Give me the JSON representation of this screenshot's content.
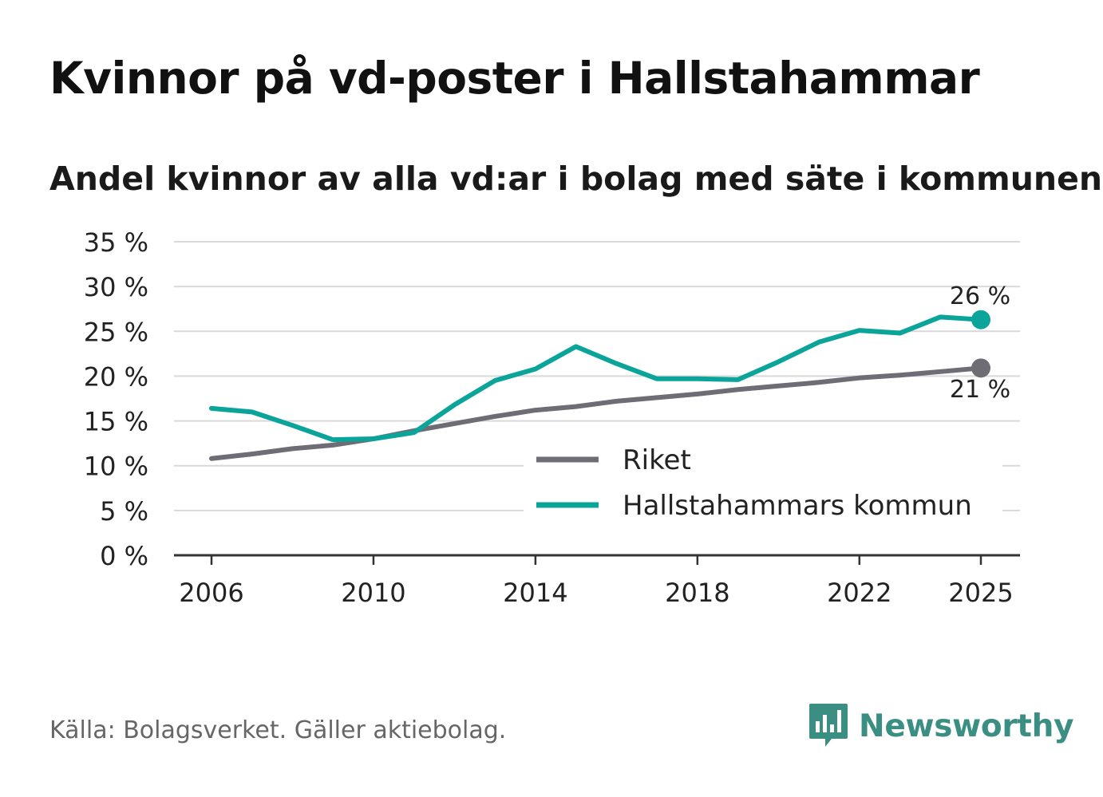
{
  "title": "Kvinnor på vd-poster i Hallstahammar",
  "subtitle": "Andel kvinnor av alla vd:ar i bolag med säte i kommunen",
  "source": "Källa: Bolagsverket. Gäller aktiebolag.",
  "brand": "Newsworthy",
  "colors": {
    "riket": "#6e6d75",
    "kommun": "#0aa49a",
    "grid": "#d9d9d9",
    "axis": "#333333",
    "brand": "#3b8f82"
  },
  "chart_data": {
    "type": "line",
    "x": [
      2006,
      2007,
      2008,
      2009,
      2010,
      2011,
      2012,
      2013,
      2014,
      2015,
      2016,
      2017,
      2018,
      2019,
      2020,
      2021,
      2022,
      2023,
      2024,
      2025
    ],
    "series": [
      {
        "name": "Riket",
        "color": "#6e6d75",
        "values": [
          10.8,
          11.3,
          11.9,
          12.3,
          13.0,
          13.9,
          14.7,
          15.5,
          16.2,
          16.6,
          17.2,
          17.6,
          18.0,
          18.5,
          18.9,
          19.3,
          19.8,
          20.1,
          20.5,
          20.9
        ],
        "end_label": "21 %"
      },
      {
        "name": "Hallstahammars kommun",
        "color": "#0aa49a",
        "values": [
          16.4,
          16.0,
          14.5,
          12.9,
          13.0,
          13.7,
          16.8,
          19.5,
          20.8,
          23.3,
          21.4,
          19.7,
          19.7,
          19.6,
          21.6,
          23.8,
          25.1,
          24.8,
          26.6,
          26.3
        ],
        "end_label": "26 %"
      }
    ],
    "xticks": [
      "2006",
      "2010",
      "2014",
      "2018",
      "2022",
      "2025"
    ],
    "yticks": [
      "0 %",
      "5 %",
      "10 %",
      "15 %",
      "20 %",
      "25 %",
      "30 %",
      "35 %"
    ],
    "ylim": [
      0,
      35
    ],
    "xlim": [
      2006,
      2025
    ],
    "legend": "bottom-right",
    "grid": true,
    "xlabel": "",
    "ylabel": ""
  }
}
